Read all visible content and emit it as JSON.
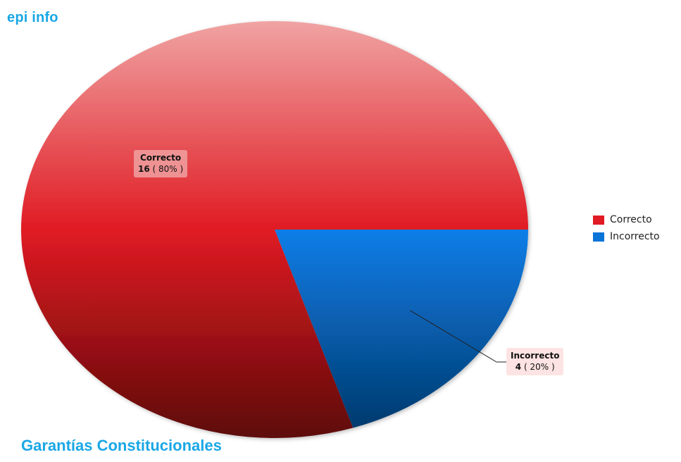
{
  "header": {
    "brand": "epi info"
  },
  "footer": {
    "title": "Garantías Constitucionales"
  },
  "colors": {
    "correcto": "#e01b23",
    "incorrecto": "#0a74d8"
  },
  "chart_data": {
    "type": "pie",
    "title": "Garantías Constitucionales",
    "legend_position": "right",
    "slices": [
      {
        "label": "Correcto",
        "value": 16,
        "percent": 80,
        "percent_text": "( 80% )",
        "color": "#e01b23"
      },
      {
        "label": "Incorrecto",
        "value": 4,
        "percent": 20,
        "percent_text": "( 20% )",
        "color": "#0a74d8"
      }
    ]
  }
}
